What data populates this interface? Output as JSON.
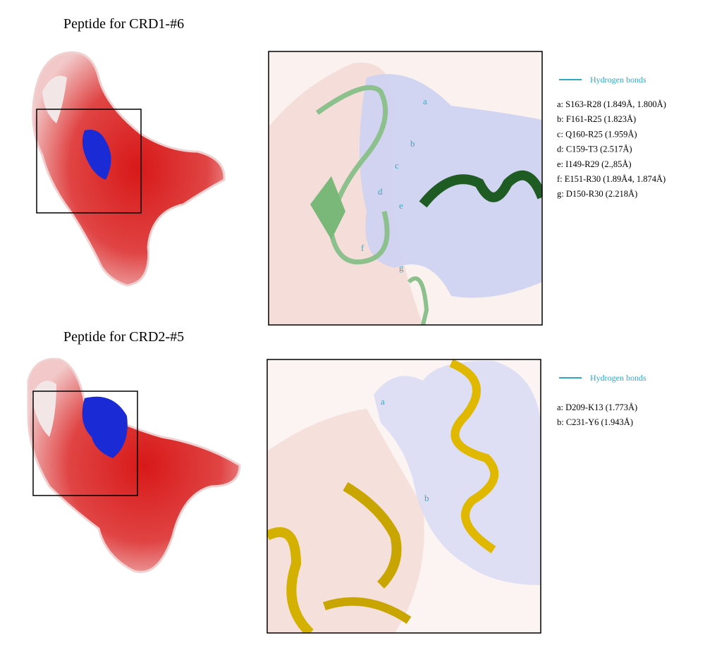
{
  "panels": [
    {
      "title": "Peptide for CRD1-#6",
      "legend": "Hydrogen bonds",
      "bonds": [
        "a: S163-R28 (1.849Å, 1.800Å)",
        "b: F161-R25 (1.823Å)",
        "c: Q160-R25 (1.959Å)",
        "d: C159-T3 (2.517Å)",
        "e: I149-R29 (2.,85Å)",
        "f: E151-R30 (1.89Å4, 1.874Å)",
        "g: D150-R30 (2.218Å)"
      ],
      "labels": [
        "a",
        "b",
        "c",
        "d",
        "e",
        "f",
        "g"
      ]
    },
    {
      "title": "Peptide for CRD2-#5",
      "legend": "Hydrogen bonds",
      "bonds": [
        "a: D209-K13 (1.773Å)",
        "b: C231-Y6 (1.943Å)"
      ],
      "labels": [
        "a",
        "b"
      ]
    }
  ]
}
